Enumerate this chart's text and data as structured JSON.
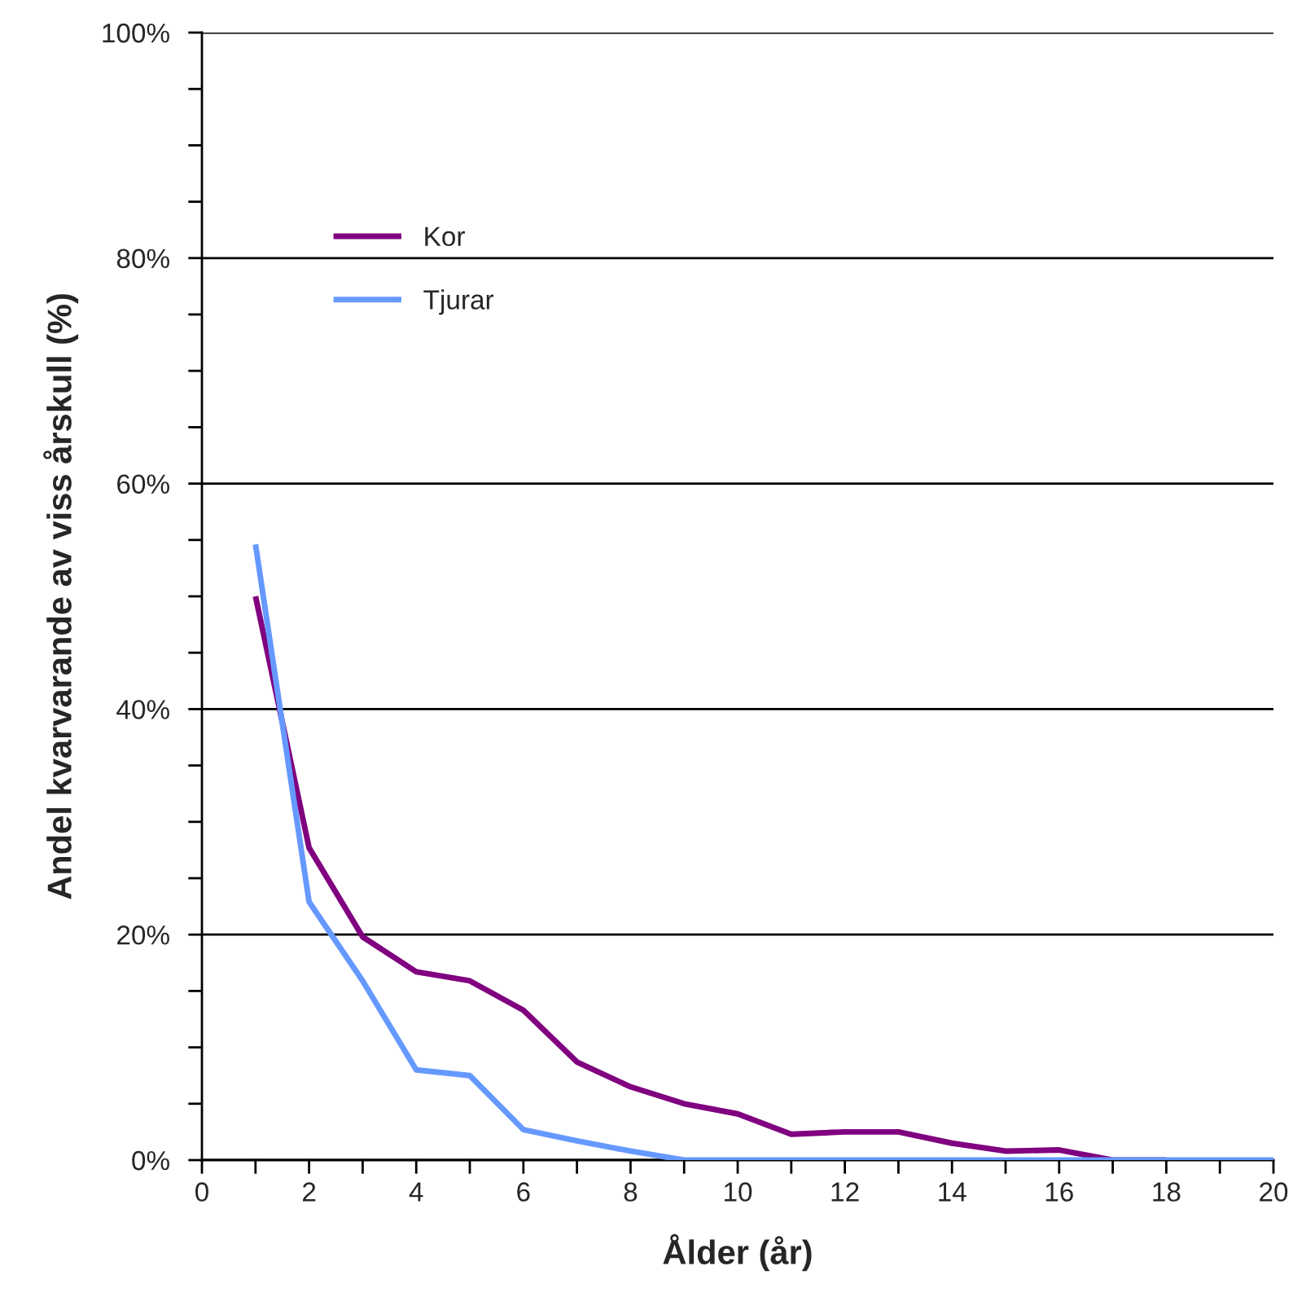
{
  "chart_data": {
    "type": "line",
    "xlabel": "Ålder (år)",
    "ylabel": "Andel kvarvarande av viss årskull (%)",
    "x": [
      1,
      2,
      3,
      4,
      5,
      6,
      7,
      8,
      9,
      10,
      11,
      12,
      13,
      14,
      15,
      16,
      17,
      18,
      19,
      20
    ],
    "series": [
      {
        "name": "Kor",
        "color": "#800080",
        "values": [
          50,
          27.7,
          19.8,
          16.7,
          15.9,
          13.3,
          8.7,
          6.5,
          5,
          4.1,
          2.3,
          2.5,
          2.5,
          1.5,
          0.8,
          0.9,
          0,
          0,
          null,
          null
        ]
      },
      {
        "name": "Tjurar",
        "color": "#6699ff",
        "values": [
          54.6,
          22.9,
          15.9,
          8,
          7.5,
          2.7,
          1.7,
          0.8,
          0,
          0,
          0,
          0,
          0,
          0,
          0,
          0,
          0,
          0,
          0,
          0
        ]
      }
    ],
    "xlim": [
      0,
      20
    ],
    "xticks": [
      0,
      2,
      4,
      6,
      8,
      10,
      12,
      14,
      16,
      18,
      20
    ],
    "ylim": [
      0,
      100
    ],
    "yticks": [
      {
        "value": 0,
        "label": "0%"
      },
      {
        "value": 20,
        "label": "20%"
      },
      {
        "value": 40,
        "label": "40%"
      },
      {
        "value": 60,
        "label": "60%"
      },
      {
        "value": 80,
        "label": "80%"
      },
      {
        "value": 100,
        "label": "100%"
      }
    ],
    "grid": "y",
    "legend": "top left",
    "marker": "none",
    "line_style": "solid"
  }
}
